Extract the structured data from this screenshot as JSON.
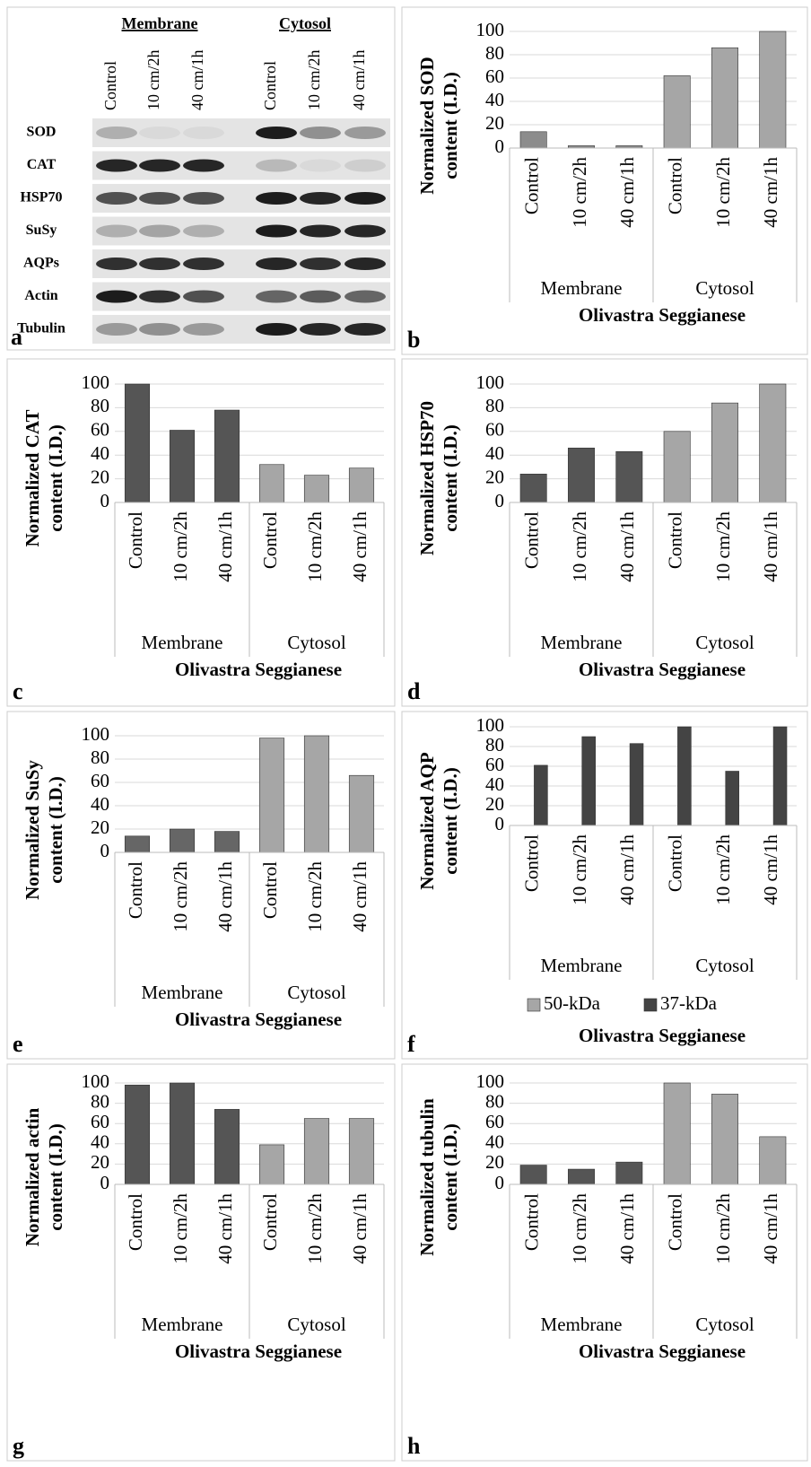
{
  "blot": {
    "panel_label": "a",
    "groups": [
      "Membrane",
      "Cytosol"
    ],
    "columns": [
      "Control",
      "10 cm/2h",
      "40 cm/1h",
      "Control",
      "10 cm/2h",
      "40 cm/1h"
    ],
    "rows": [
      "SOD",
      "CAT",
      "HSP70",
      "SuSy",
      "AQPs",
      "Actin",
      "Tubulin"
    ]
  },
  "chart_data": [
    {
      "type": "bar",
      "panel_label": "b",
      "y_label": [
        "Normalized SOD",
        "content (I.D.)"
      ],
      "x_label": "Olivastra Seggianese",
      "groups": [
        "Membrane",
        "Cytosol"
      ],
      "categories": [
        "Control",
        "10 cm/2h",
        "40 cm/1h",
        "Control",
        "10 cm/2h",
        "40 cm/1h"
      ],
      "series": [
        {
          "values": [
            14,
            2,
            2,
            62,
            86,
            100
          ],
          "colors": [
            "#8c8c8c",
            "#8c8c8c",
            "#8c8c8c",
            "#a6a6a6",
            "#a6a6a6",
            "#a6a6a6"
          ]
        }
      ],
      "ylim": [
        0,
        100
      ],
      "yticks": [
        0,
        20,
        40,
        60,
        80,
        100
      ],
      "grid": true
    },
    {
      "type": "bar",
      "panel_label": "c",
      "y_label": [
        "Normalized CAT",
        "content (I.D.)"
      ],
      "x_label": "Olivastra Seggianese",
      "groups": [
        "Membrane",
        "Cytosol"
      ],
      "categories": [
        "Control",
        "10 cm/2h",
        "40 cm/1h",
        "Control",
        "10 cm/2h",
        "40 cm/1h"
      ],
      "series": [
        {
          "values": [
            100,
            61,
            78,
            32,
            23,
            29
          ],
          "colors": [
            "#555555",
            "#555555",
            "#555555",
            "#a6a6a6",
            "#a6a6a6",
            "#a6a6a6"
          ]
        }
      ],
      "ylim": [
        0,
        100
      ],
      "yticks": [
        0,
        20,
        40,
        60,
        80,
        100
      ],
      "grid": true
    },
    {
      "type": "bar",
      "panel_label": "d",
      "y_label": [
        "Normalized HSP70",
        "content (I.D.)"
      ],
      "x_label": "Olivastra Seggianese",
      "groups": [
        "Membrane",
        "Cytosol"
      ],
      "categories": [
        "Control",
        "10 cm/2h",
        "40 cm/1h",
        "Control",
        "10 cm/2h",
        "40 cm/1h"
      ],
      "series": [
        {
          "values": [
            24,
            46,
            43,
            60,
            84,
            100
          ],
          "colors": [
            "#555555",
            "#555555",
            "#555555",
            "#a6a6a6",
            "#a6a6a6",
            "#a6a6a6"
          ]
        }
      ],
      "ylim": [
        0,
        100
      ],
      "yticks": [
        0,
        20,
        40,
        60,
        80,
        100
      ],
      "grid": true
    },
    {
      "type": "bar",
      "panel_label": "e",
      "y_label": [
        "Normalized SuSy",
        "content (I.D.)"
      ],
      "x_label": "Olivastra Seggianese",
      "groups": [
        "Membrane",
        "Cytosol"
      ],
      "categories": [
        "Control",
        "10 cm/2h",
        "40 cm/1h",
        "Control",
        "10 cm/2h",
        "40 cm/1h"
      ],
      "series": [
        {
          "values": [
            14,
            20,
            18,
            98,
            100,
            66
          ],
          "colors": [
            "#666666",
            "#666666",
            "#666666",
            "#a6a6a6",
            "#a6a6a6",
            "#a6a6a6"
          ]
        }
      ],
      "ylim": [
        0,
        100
      ],
      "yticks": [
        0,
        20,
        40,
        60,
        80,
        100
      ],
      "grid": true
    },
    {
      "type": "bar",
      "panel_label": "f",
      "y_label": [
        "Normalized AQP",
        "content (I.D.)"
      ],
      "x_label": "Olivastra Seggianese",
      "groups": [
        "Membrane",
        "Cytosol"
      ],
      "categories": [
        "Control",
        "10 cm/2h",
        "40 cm/1h",
        "Control",
        "10 cm/2h",
        "40 cm/1h"
      ],
      "series": [
        {
          "name": "50-kDa",
          "color": "#a6a6a6",
          "values": [
            null,
            null,
            null,
            null,
            null,
            null
          ]
        },
        {
          "name": "37-kDa",
          "color": "#444444",
          "values": [
            61,
            90,
            83,
            100,
            55,
            100
          ]
        }
      ],
      "ylim": [
        0,
        100
      ],
      "yticks": [
        0,
        20,
        40,
        60,
        80,
        100
      ],
      "grid": true
    },
    {
      "type": "bar",
      "panel_label": "g",
      "y_label": [
        "Normalized actin",
        "content (I.D.)"
      ],
      "x_label": "Olivastra Seggianese",
      "groups": [
        "Membrane",
        "Cytosol"
      ],
      "categories": [
        "Control",
        "10 cm/2h",
        "40 cm/1h",
        "Control",
        "10 cm/2h",
        "40 cm/1h"
      ],
      "series": [
        {
          "values": [
            98,
            100,
            74,
            39,
            65,
            65
          ],
          "colors": [
            "#555555",
            "#555555",
            "#555555",
            "#a6a6a6",
            "#a6a6a6",
            "#a6a6a6"
          ]
        }
      ],
      "ylim": [
        0,
        100
      ],
      "yticks": [
        0,
        20,
        40,
        60,
        80,
        100
      ],
      "grid": true
    },
    {
      "type": "bar",
      "panel_label": "h",
      "y_label": [
        "Normalized tubulin",
        "content (I.D.)"
      ],
      "x_label": "Olivastra Seggianese",
      "groups": [
        "Membrane",
        "Cytosol"
      ],
      "categories": [
        "Control",
        "10 cm/2h",
        "40 cm/1h",
        "Control",
        "10 cm/2h",
        "40 cm/1h"
      ],
      "series": [
        {
          "values": [
            19,
            15,
            22,
            100,
            89,
            47
          ],
          "colors": [
            "#555555",
            "#555555",
            "#555555",
            "#a6a6a6",
            "#a6a6a6",
            "#a6a6a6"
          ]
        }
      ],
      "ylim": [
        0,
        100
      ],
      "yticks": [
        0,
        20,
        40,
        60,
        80,
        100
      ],
      "grid": true
    }
  ]
}
